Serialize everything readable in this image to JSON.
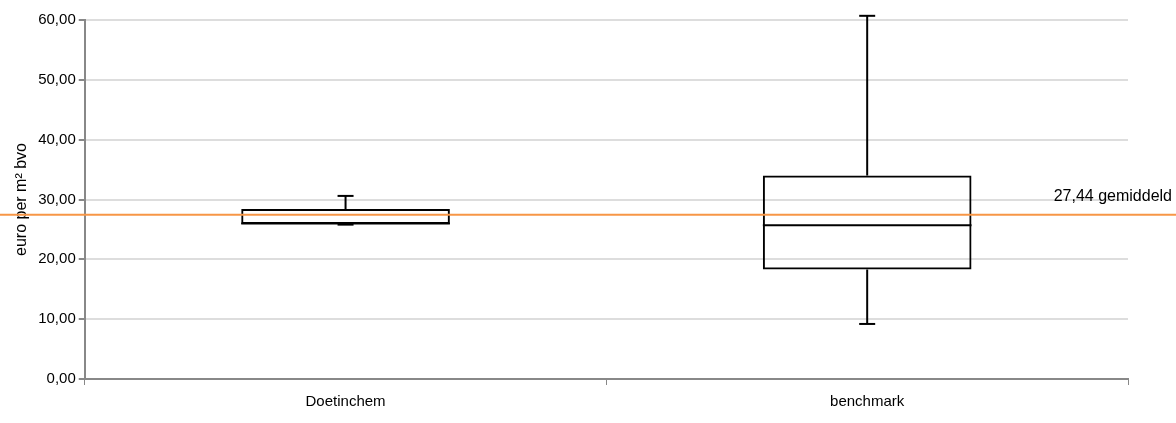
{
  "chart_data": {
    "type": "box",
    "ylabel": "euro per m² bvo",
    "categories": [
      "Doetinchem",
      "benchmark"
    ],
    "boxes": [
      {
        "low": 25.8,
        "q1": 25.9,
        "median": 26.0,
        "q3": 28.4,
        "high": 30.6
      },
      {
        "low": 9.2,
        "q1": 18.3,
        "median": 25.7,
        "q3": 34.0,
        "high": 60.7
      }
    ],
    "color": "#000000",
    "ylim": [
      0,
      60
    ],
    "yticks": [
      {
        "value": 0,
        "label": "0,00"
      },
      {
        "value": 10,
        "label": "10,00"
      },
      {
        "value": 20,
        "label": "20,00"
      },
      {
        "value": 30,
        "label": "30,00"
      },
      {
        "value": 40,
        "label": "40,00"
      },
      {
        "value": 50,
        "label": "50,00"
      },
      {
        "value": 60,
        "label": "60,00"
      }
    ],
    "grid": "y",
    "ref_lines": [
      {
        "axis": "y",
        "value": 27.44,
        "label": "27,44 gemiddeld",
        "color": "#f79646"
      }
    ]
  }
}
